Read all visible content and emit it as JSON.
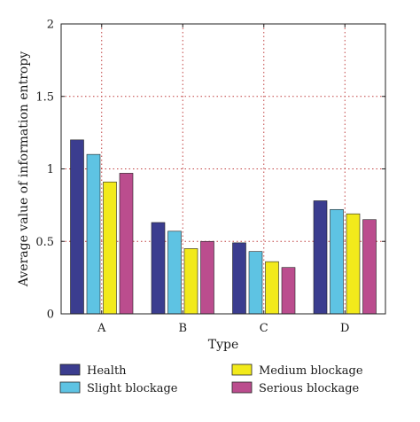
{
  "chart_data": {
    "type": "bar",
    "xlabel": "Type",
    "ylabel": "Average value of information entropy",
    "categories": [
      "A",
      "B",
      "C",
      "D"
    ],
    "ylim": [
      0,
      2
    ],
    "yticks": [
      "0",
      "0.5",
      "1",
      "1.5",
      "2"
    ],
    "ytick_values": [
      0,
      0.5,
      1,
      1.5,
      2
    ],
    "grid": "dotted, at category centers and y ticks",
    "legend_position": "bottom, two columns",
    "series": [
      {
        "name": "Health",
        "color": "#3b3d8f",
        "values": [
          1.2,
          0.63,
          0.49,
          0.78
        ]
      },
      {
        "name": "Slight blockage",
        "color": "#5ec3e3",
        "values": [
          1.1,
          0.57,
          0.43,
          0.72
        ]
      },
      {
        "name": "Medium blockage",
        "color": "#f2ea1b",
        "values": [
          0.91,
          0.45,
          0.36,
          0.69
        ]
      },
      {
        "name": "Serious blockage",
        "color": "#bb4d8e",
        "values": [
          0.97,
          0.5,
          0.32,
          0.65
        ]
      }
    ]
  }
}
